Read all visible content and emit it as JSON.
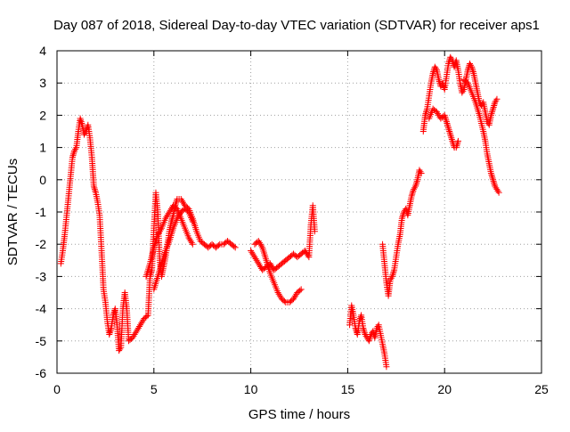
{
  "chart_data": {
    "type": "scatter",
    "title": "Day 087 of 2018, Sidereal Day-to-day VTEC variation (SDTVAR) for receiver aps1",
    "xlabel": "GPS time / hours",
    "ylabel": "SDTVAR / TECUs",
    "xlim": [
      0,
      25
    ],
    "ylim": [
      -6,
      4
    ],
    "xticks": [
      "0",
      "5",
      "10",
      "15",
      "20",
      "25"
    ],
    "yticks": [
      "-6",
      "-5",
      "-4",
      "-3",
      "-2",
      "-1",
      "0",
      "1",
      "2",
      "3",
      "4"
    ],
    "grid": true,
    "marker": "+",
    "series": [
      {
        "name": "SDTVAR aps1",
        "color": "#ff0000",
        "segments": [
          [
            [
              0.2,
              -2.6
            ],
            [
              0.3,
              -2.2
            ],
            [
              0.4,
              -1.7
            ],
            [
              0.5,
              -1.1
            ],
            [
              0.6,
              -0.5
            ],
            [
              0.7,
              0.1
            ],
            [
              0.8,
              0.7
            ],
            [
              0.9,
              0.9
            ],
            [
              1.0,
              1.0
            ],
            [
              1.1,
              1.5
            ],
            [
              1.2,
              1.9
            ],
            [
              1.3,
              1.7
            ],
            [
              1.4,
              1.4
            ],
            [
              1.5,
              1.5
            ],
            [
              1.6,
              1.7
            ],
            [
              1.7,
              1.3
            ],
            [
              1.8,
              0.7
            ],
            [
              1.9,
              -0.2
            ],
            [
              2.0,
              -0.4
            ],
            [
              2.1,
              -0.7
            ],
            [
              2.2,
              -1.1
            ],
            [
              2.3,
              -2.2
            ],
            [
              2.4,
              -3.4
            ],
            [
              2.5,
              -3.8
            ],
            [
              2.6,
              -4.4
            ],
            [
              2.7,
              -4.8
            ],
            [
              2.8,
              -4.6
            ],
            [
              2.9,
              -4.2
            ],
            [
              3.0,
              -4.0
            ],
            [
              3.1,
              -4.5
            ],
            [
              3.2,
              -5.3
            ],
            [
              3.3,
              -5.2
            ],
            [
              3.4,
              -4.0
            ],
            [
              3.5,
              -3.5
            ],
            [
              3.6,
              -4.0
            ],
            [
              3.7,
              -5.0
            ],
            [
              3.9,
              -4.9
            ],
            [
              4.1,
              -4.7
            ],
            [
              4.3,
              -4.5
            ],
            [
              4.5,
              -4.3
            ],
            [
              4.7,
              -4.2
            ],
            [
              4.8,
              -3.0
            ],
            [
              4.9,
              -2.8
            ],
            [
              5.0,
              -1.5
            ],
            [
              5.1,
              -0.4
            ],
            [
              5.2,
              -1.0
            ],
            [
              5.3,
              -2.5
            ],
            [
              5.4,
              -3.0
            ],
            [
              5.5,
              -2.7
            ],
            [
              5.6,
              -2.4
            ],
            [
              5.7,
              -2.0
            ],
            [
              5.8,
              -1.6
            ],
            [
              5.9,
              -1.3
            ],
            [
              6.0,
              -1.1
            ],
            [
              6.1,
              -0.8
            ],
            [
              6.2,
              -0.6
            ],
            [
              6.4,
              -0.6
            ],
            [
              6.6,
              -0.8
            ],
            [
              6.8,
              -0.9
            ],
            [
              7.0,
              -1.2
            ],
            [
              7.2,
              -1.6
            ],
            [
              7.4,
              -1.9
            ],
            [
              7.6,
              -2.0
            ],
            [
              7.8,
              -2.1
            ],
            [
              8.0,
              -2.0
            ],
            [
              8.2,
              -2.1
            ],
            [
              8.4,
              -2.0
            ],
            [
              8.6,
              -2.0
            ],
            [
              8.8,
              -1.9
            ],
            [
              9.0,
              -2.0
            ],
            [
              9.2,
              -2.1
            ]
          ],
          [
            [
              10.0,
              -2.2
            ],
            [
              10.2,
              -2.4
            ],
            [
              10.4,
              -2.6
            ],
            [
              10.6,
              -2.8
            ],
            [
              10.8,
              -2.7
            ],
            [
              11.0,
              -2.6
            ],
            [
              11.2,
              -2.8
            ],
            [
              11.4,
              -2.7
            ],
            [
              11.6,
              -2.6
            ],
            [
              11.8,
              -2.5
            ],
            [
              12.0,
              -2.4
            ],
            [
              12.2,
              -2.3
            ],
            [
              12.4,
              -2.4
            ],
            [
              12.6,
              -2.3
            ],
            [
              12.8,
              -2.2
            ],
            [
              13.0,
              -2.4
            ],
            [
              13.1,
              -1.4
            ],
            [
              13.2,
              -0.8
            ],
            [
              13.3,
              -1.6
            ]
          ],
          [
            [
              10.2,
              -2.0
            ],
            [
              10.4,
              -1.9
            ],
            [
              10.6,
              -2.1
            ],
            [
              10.8,
              -2.5
            ],
            [
              11.0,
              -2.9
            ],
            [
              11.2,
              -3.2
            ],
            [
              11.4,
              -3.5
            ],
            [
              11.6,
              -3.7
            ],
            [
              11.8,
              -3.8
            ],
            [
              12.0,
              -3.8
            ],
            [
              12.2,
              -3.7
            ],
            [
              12.4,
              -3.5
            ],
            [
              12.6,
              -3.4
            ]
          ],
          [
            [
              15.1,
              -4.5
            ],
            [
              15.2,
              -3.9
            ],
            [
              15.3,
              -4.2
            ],
            [
              15.4,
              -4.6
            ],
            [
              15.5,
              -4.8
            ],
            [
              15.6,
              -4.4
            ],
            [
              15.7,
              -4.2
            ],
            [
              15.8,
              -4.6
            ],
            [
              15.9,
              -4.8
            ],
            [
              16.0,
              -4.9
            ],
            [
              16.1,
              -5.0
            ],
            [
              16.2,
              -4.8
            ],
            [
              16.3,
              -4.7
            ],
            [
              16.4,
              -4.9
            ],
            [
              16.5,
              -4.6
            ],
            [
              16.6,
              -4.5
            ],
            [
              16.8,
              -5.1
            ],
            [
              16.9,
              -5.4
            ],
            [
              17.0,
              -5.8
            ]
          ],
          [
            [
              16.8,
              -2.0
            ],
            [
              16.9,
              -2.6
            ],
            [
              17.0,
              -3.2
            ],
            [
              17.1,
              -3.6
            ],
            [
              17.2,
              -3.1
            ],
            [
              17.3,
              -3.0
            ],
            [
              17.4,
              -2.8
            ],
            [
              17.5,
              -2.4
            ],
            [
              17.6,
              -2.0
            ],
            [
              17.7,
              -1.7
            ],
            [
              17.8,
              -1.2
            ],
            [
              17.9,
              -1.0
            ],
            [
              18.0,
              -0.9
            ],
            [
              18.1,
              -1.1
            ],
            [
              18.2,
              -0.8
            ],
            [
              18.3,
              -0.5
            ],
            [
              18.4,
              -0.3
            ],
            [
              18.5,
              -0.2
            ],
            [
              18.6,
              0.0
            ],
            [
              18.7,
              0.3
            ],
            [
              18.8,
              0.2
            ]
          ],
          [
            [
              18.9,
              1.5
            ],
            [
              19.0,
              2.0
            ],
            [
              19.1,
              2.2
            ],
            [
              19.2,
              2.6
            ],
            [
              19.3,
              3.0
            ],
            [
              19.4,
              3.3
            ],
            [
              19.5,
              3.5
            ],
            [
              19.6,
              3.4
            ],
            [
              19.7,
              3.1
            ],
            [
              19.8,
              2.9
            ],
            [
              19.9,
              3.0
            ],
            [
              20.0,
              2.8
            ],
            [
              20.1,
              3.2
            ],
            [
              20.2,
              3.6
            ],
            [
              20.3,
              3.8
            ],
            [
              20.4,
              3.7
            ],
            [
              20.5,
              3.5
            ],
            [
              20.6,
              3.7
            ],
            [
              20.7,
              3.4
            ],
            [
              20.8,
              3.0
            ],
            [
              20.9,
              2.7
            ],
            [
              21.0,
              2.8
            ],
            [
              21.1,
              3.1
            ],
            [
              21.2,
              3.4
            ],
            [
              21.3,
              3.6
            ],
            [
              21.4,
              3.5
            ],
            [
              21.5,
              3.3
            ],
            [
              21.6,
              3.0
            ],
            [
              21.7,
              2.7
            ],
            [
              21.8,
              2.4
            ],
            [
              21.9,
              2.3
            ],
            [
              22.0,
              2.4
            ],
            [
              22.1,
              2.1
            ],
            [
              22.2,
              1.8
            ],
            [
              22.3,
              1.7
            ],
            [
              22.4,
              2.0
            ],
            [
              22.5,
              2.2
            ],
            [
              22.6,
              2.4
            ],
            [
              22.7,
              2.5
            ]
          ],
          [
            [
              19.2,
              1.9
            ],
            [
              19.4,
              2.2
            ],
            [
              19.6,
              2.1
            ],
            [
              19.8,
              1.9
            ],
            [
              20.0,
              2.0
            ],
            [
              20.1,
              1.8
            ],
            [
              20.2,
              1.6
            ],
            [
              20.3,
              1.4
            ],
            [
              20.4,
              1.2
            ],
            [
              20.5,
              1.0
            ],
            [
              20.6,
              1.0
            ],
            [
              20.7,
              1.2
            ]
          ],
          [
            [
              21.0,
              3.1
            ],
            [
              21.2,
              3.0
            ],
            [
              21.4,
              2.7
            ],
            [
              21.6,
              2.4
            ],
            [
              21.8,
              2.0
            ],
            [
              22.0,
              1.5
            ],
            [
              22.1,
              1.2
            ],
            [
              22.2,
              0.8
            ],
            [
              22.3,
              0.5
            ],
            [
              22.4,
              0.2
            ],
            [
              22.5,
              0.0
            ],
            [
              22.6,
              -0.2
            ],
            [
              22.7,
              -0.3
            ],
            [
              22.8,
              -0.4
            ]
          ],
          [
            [
              4.6,
              -3.0
            ],
            [
              4.8,
              -2.6
            ],
            [
              5.0,
              -2.1
            ],
            [
              5.2,
              -1.7
            ],
            [
              5.4,
              -1.5
            ],
            [
              5.6,
              -1.2
            ],
            [
              5.8,
              -1.0
            ],
            [
              6.0,
              -0.8
            ],
            [
              6.2,
              -0.9
            ],
            [
              6.4,
              -1.2
            ],
            [
              6.6,
              -1.5
            ],
            [
              6.8,
              -1.8
            ],
            [
              7.0,
              -2.0
            ]
          ],
          [
            [
              5.0,
              -3.4
            ],
            [
              5.2,
              -3.0
            ],
            [
              5.4,
              -2.6
            ],
            [
              5.6,
              -2.2
            ],
            [
              5.8,
              -1.9
            ],
            [
              6.0,
              -1.5
            ],
            [
              6.2,
              -1.2
            ],
            [
              6.4,
              -1.0
            ],
            [
              6.6,
              -0.9
            ],
            [
              6.8,
              -1.0
            ],
            [
              7.0,
              -1.3
            ]
          ]
        ]
      }
    ]
  }
}
